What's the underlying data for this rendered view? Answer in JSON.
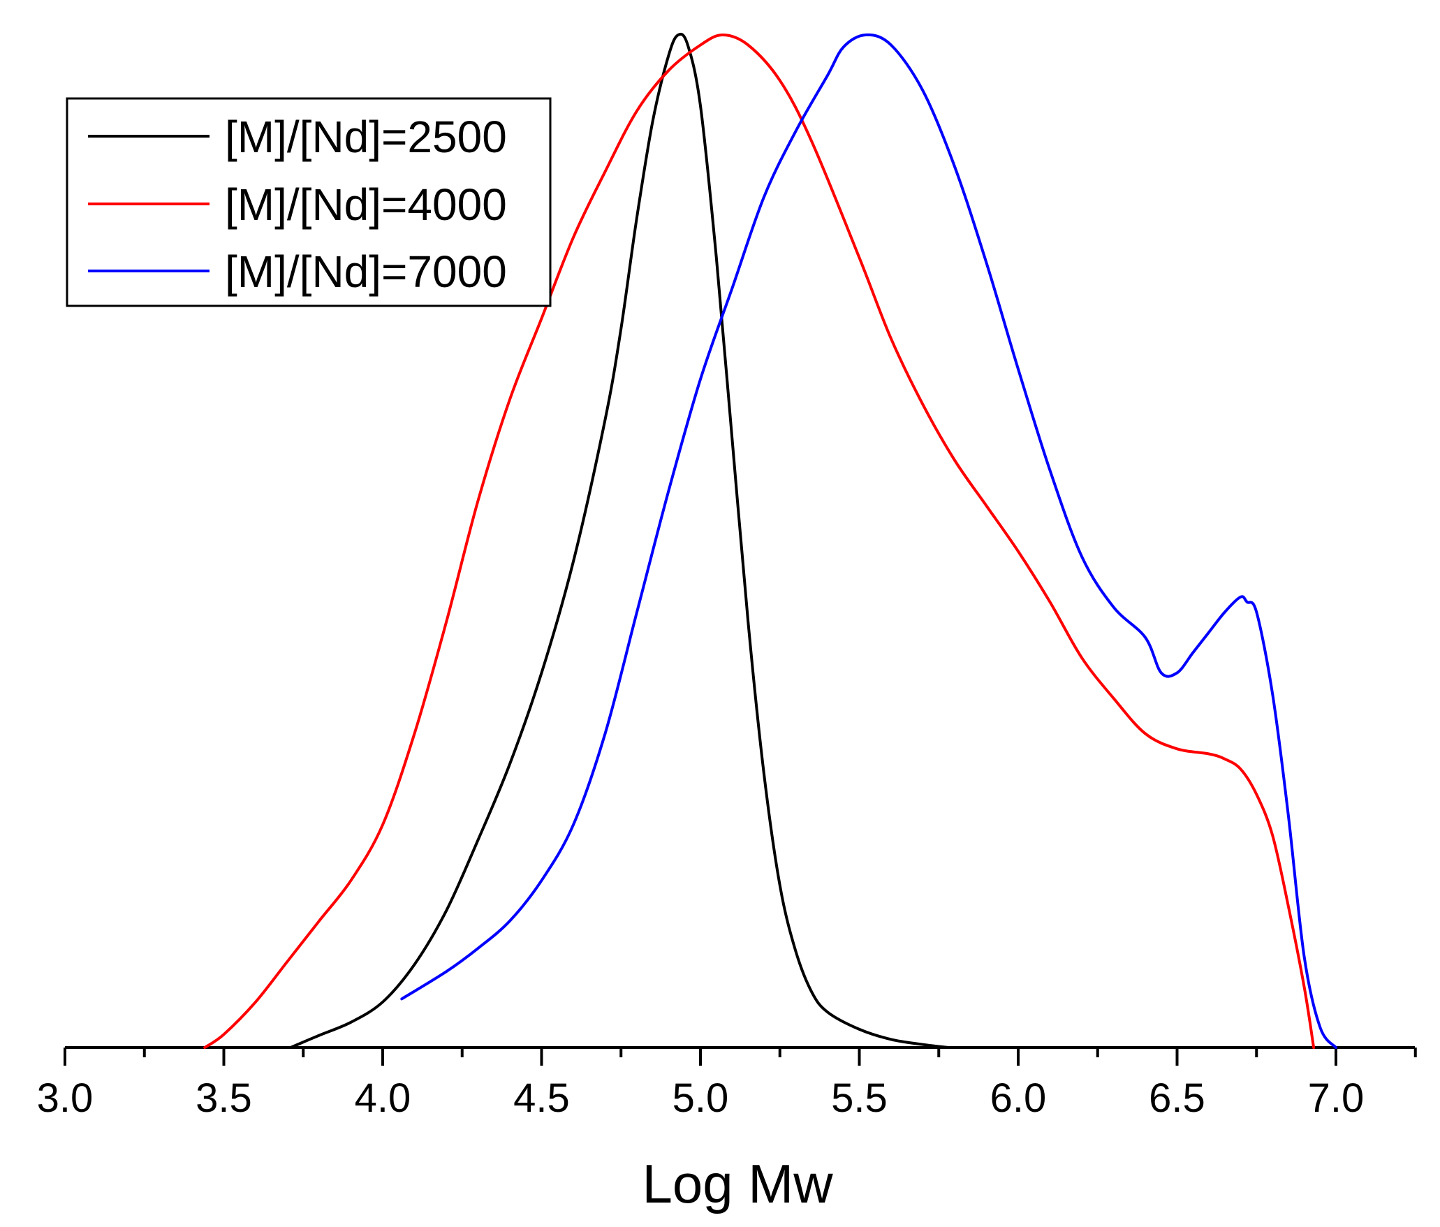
{
  "chart_data": {
    "type": "line",
    "title": "",
    "xlabel": "Log Mw",
    "ylabel": "",
    "xlim": [
      3.0,
      7.25
    ],
    "ylim": [
      0,
      1.0
    ],
    "grid": false,
    "legend_position": "top-left",
    "x_ticks": [
      "3.0",
      "3.5",
      "4.0",
      "4.5",
      "5.0",
      "5.5",
      "6.0",
      "6.5",
      "7.0"
    ],
    "series": [
      {
        "name": "[M]/[Nd]=2500",
        "color": "#000000",
        "points": [
          [
            3.71,
            0.0
          ],
          [
            3.8,
            0.012
          ],
          [
            3.9,
            0.025
          ],
          [
            4.0,
            0.045
          ],
          [
            4.1,
            0.082
          ],
          [
            4.2,
            0.135
          ],
          [
            4.3,
            0.205
          ],
          [
            4.4,
            0.28
          ],
          [
            4.5,
            0.37
          ],
          [
            4.6,
            0.48
          ],
          [
            4.7,
            0.62
          ],
          [
            4.75,
            0.71
          ],
          [
            4.8,
            0.82
          ],
          [
            4.85,
            0.915
          ],
          [
            4.9,
            0.98
          ],
          [
            4.93,
            1.0
          ],
          [
            4.96,
            0.99
          ],
          [
            5.0,
            0.93
          ],
          [
            5.05,
            0.78
          ],
          [
            5.1,
            0.6
          ],
          [
            5.15,
            0.42
          ],
          [
            5.2,
            0.27
          ],
          [
            5.25,
            0.16
          ],
          [
            5.3,
            0.095
          ],
          [
            5.35,
            0.055
          ],
          [
            5.4,
            0.035
          ],
          [
            5.5,
            0.018
          ],
          [
            5.6,
            0.008
          ],
          [
            5.7,
            0.003
          ],
          [
            5.78,
            0.0
          ]
        ]
      },
      {
        "name": "[M]/[Nd]=4000",
        "color": "#ff0000",
        "points": [
          [
            3.44,
            0.0
          ],
          [
            3.5,
            0.013
          ],
          [
            3.6,
            0.045
          ],
          [
            3.7,
            0.085
          ],
          [
            3.8,
            0.125
          ],
          [
            3.9,
            0.165
          ],
          [
            4.0,
            0.22
          ],
          [
            4.1,
            0.31
          ],
          [
            4.2,
            0.42
          ],
          [
            4.3,
            0.54
          ],
          [
            4.4,
            0.64
          ],
          [
            4.5,
            0.72
          ],
          [
            4.6,
            0.8
          ],
          [
            4.7,
            0.865
          ],
          [
            4.8,
            0.925
          ],
          [
            4.9,
            0.965
          ],
          [
            5.0,
            0.99
          ],
          [
            5.07,
            1.0
          ],
          [
            5.15,
            0.99
          ],
          [
            5.25,
            0.955
          ],
          [
            5.35,
            0.895
          ],
          [
            5.5,
            0.78
          ],
          [
            5.6,
            0.7
          ],
          [
            5.7,
            0.635
          ],
          [
            5.8,
            0.58
          ],
          [
            5.9,
            0.535
          ],
          [
            6.0,
            0.49
          ],
          [
            6.1,
            0.44
          ],
          [
            6.2,
            0.385
          ],
          [
            6.3,
            0.345
          ],
          [
            6.4,
            0.31
          ],
          [
            6.5,
            0.295
          ],
          [
            6.6,
            0.29
          ],
          [
            6.65,
            0.285
          ],
          [
            6.7,
            0.275
          ],
          [
            6.75,
            0.25
          ],
          [
            6.8,
            0.21
          ],
          [
            6.85,
            0.14
          ],
          [
            6.9,
            0.06
          ],
          [
            6.93,
            0.0
          ]
        ]
      },
      {
        "name": "[M]/[Nd]=7000",
        "color": "#0000ff",
        "points": [
          [
            4.06,
            0.048
          ],
          [
            4.2,
            0.075
          ],
          [
            4.3,
            0.098
          ],
          [
            4.4,
            0.125
          ],
          [
            4.5,
            0.165
          ],
          [
            4.6,
            0.22
          ],
          [
            4.7,
            0.31
          ],
          [
            4.8,
            0.43
          ],
          [
            4.9,
            0.55
          ],
          [
            5.0,
            0.66
          ],
          [
            5.1,
            0.75
          ],
          [
            5.2,
            0.84
          ],
          [
            5.3,
            0.905
          ],
          [
            5.4,
            0.96
          ],
          [
            5.45,
            0.988
          ],
          [
            5.52,
            1.0
          ],
          [
            5.6,
            0.99
          ],
          [
            5.7,
            0.945
          ],
          [
            5.8,
            0.87
          ],
          [
            5.9,
            0.775
          ],
          [
            6.0,
            0.67
          ],
          [
            6.1,
            0.57
          ],
          [
            6.2,
            0.485
          ],
          [
            6.3,
            0.435
          ],
          [
            6.4,
            0.405
          ],
          [
            6.45,
            0.37
          ],
          [
            6.5,
            0.37
          ],
          [
            6.55,
            0.39
          ],
          [
            6.6,
            0.41
          ],
          [
            6.65,
            0.43
          ],
          [
            6.7,
            0.445
          ],
          [
            6.72,
            0.44
          ],
          [
            6.75,
            0.43
          ],
          [
            6.8,
            0.35
          ],
          [
            6.85,
            0.23
          ],
          [
            6.9,
            0.09
          ],
          [
            6.95,
            0.02
          ],
          [
            7.0,
            0.0
          ]
        ]
      }
    ]
  }
}
